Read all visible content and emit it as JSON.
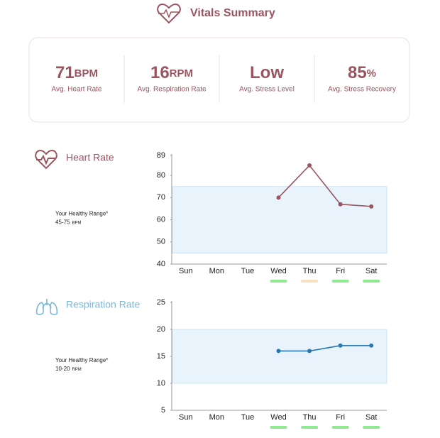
{
  "header": {
    "title": "Vitals Summary"
  },
  "summary": [
    {
      "value": 71,
      "unit": "BPM",
      "label": "Avg. Heart Rate"
    },
    {
      "value": 16,
      "unit": "RPM",
      "label": "Avg. Respiration Rate"
    },
    {
      "value": "Low",
      "label": "Avg. Stress Level"
    },
    {
      "value": 85,
      "unit": "%",
      "label": "Avg. Stress Recovery"
    }
  ],
  "chart_data": [
    {
      "type": "line",
      "title": "Heart Rate",
      "title_color": "#9a5560",
      "range_title": "Your Healthy Range*",
      "range_label": "45-75",
      "range_unit": "BPM",
      "range": [
        45,
        75
      ],
      "categories": [
        "Sun",
        "Mon",
        "Tue",
        "Wed",
        "Thu",
        "Fri",
        "Sat"
      ],
      "values": [
        null,
        null,
        null,
        70,
        84.5,
        67,
        66
      ],
      "color": "#9a5560",
      "status_colors": [
        null,
        null,
        null,
        "#90e890",
        "#f6e0bd",
        "#90e890",
        "#90e890"
      ],
      "ylim": [
        40,
        89
      ],
      "yticks": [
        40,
        50,
        60,
        70,
        80,
        89
      ]
    },
    {
      "type": "line",
      "title": "Respiration Rate",
      "title_color": "#7ab8d8",
      "range_title": "Your Healthy Range*",
      "range_label": "10-20",
      "range_unit": "RPM",
      "range": [
        10,
        20
      ],
      "categories": [
        "Sun",
        "Mon",
        "Tue",
        "Wed",
        "Thu",
        "Fri",
        "Sat"
      ],
      "values": [
        null,
        null,
        null,
        16,
        16,
        17,
        17
      ],
      "color": "#2a78b0",
      "status_colors": [
        null,
        null,
        null,
        "#90e890",
        "#90e890",
        "#90e890",
        "#90e890"
      ],
      "ylim": [
        5,
        25
      ],
      "yticks": [
        5,
        10,
        15,
        20,
        25
      ]
    }
  ]
}
